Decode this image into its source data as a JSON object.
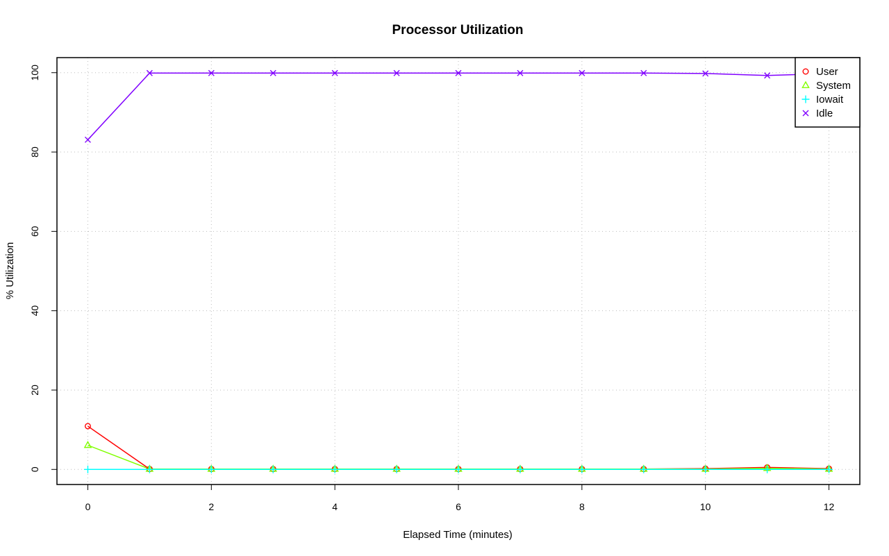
{
  "chart_data": {
    "type": "line",
    "title": "Processor Utilization",
    "xlabel": "Elapsed Time (minutes)",
    "ylabel": "% Utilization",
    "xlim": [
      -0.5,
      12.5
    ],
    "ylim": [
      -3.8,
      103.8
    ],
    "x_ticks": [
      "0",
      "2",
      "4",
      "6",
      "8",
      "10",
      "12"
    ],
    "y_ticks": [
      "0",
      "20",
      "40",
      "60",
      "80",
      "100"
    ],
    "grid": true,
    "legend_position": "top-right",
    "x": [
      0,
      1,
      2,
      3,
      4,
      5,
      6,
      7,
      8,
      9,
      10,
      11,
      12
    ],
    "series": [
      {
        "name": "User",
        "color": "#ff0000",
        "marker": "circle",
        "values": [
          10.9,
          0.1,
          0.1,
          0.1,
          0.1,
          0.1,
          0.1,
          0.1,
          0.1,
          0.1,
          0.2,
          0.5,
          0.2
        ]
      },
      {
        "name": "System",
        "color": "#80ff00",
        "marker": "triangle",
        "values": [
          6.1,
          0.1,
          0.1,
          0.1,
          0.1,
          0.1,
          0.1,
          0.1,
          0.1,
          0.1,
          0.1,
          0.3,
          0.1
        ]
      },
      {
        "name": "Iowait",
        "color": "#00ffff",
        "marker": "plus",
        "values": [
          0.0,
          0.0,
          0.0,
          0.0,
          0.0,
          0.0,
          0.0,
          0.0,
          0.0,
          0.0,
          0.0,
          0.0,
          0.0
        ]
      },
      {
        "name": "Idle",
        "color": "#8000ff",
        "marker": "cross",
        "values": [
          83.1,
          99.9,
          99.9,
          99.9,
          99.9,
          99.9,
          99.9,
          99.9,
          99.9,
          99.9,
          99.8,
          99.3,
          99.8
        ]
      }
    ]
  }
}
